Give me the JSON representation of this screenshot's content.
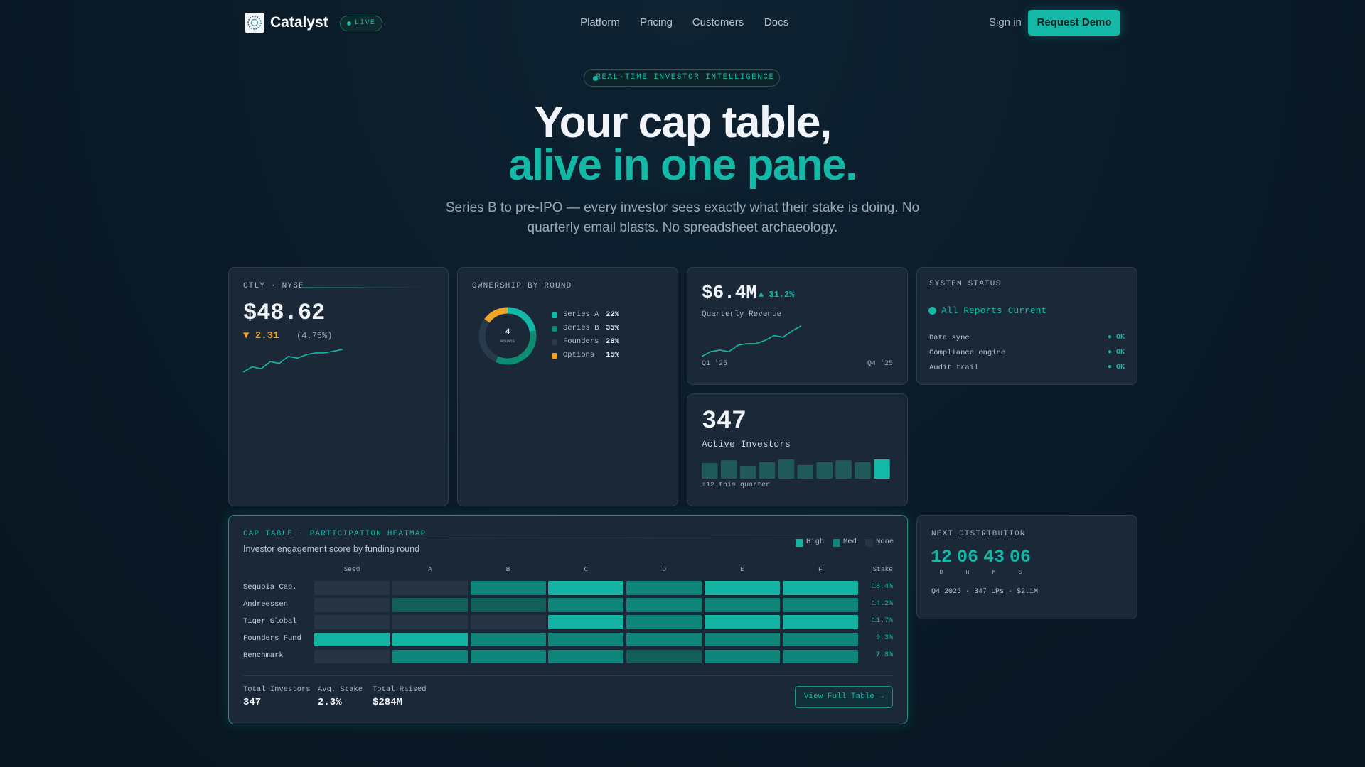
{
  "nav": {
    "brand": "Catalyst",
    "status": "LIVE",
    "links": [
      "Platform",
      "Pricing",
      "Customers",
      "Docs"
    ],
    "sign_in": "Sign in",
    "cta": "Request Demo"
  },
  "hero": {
    "badge": "REAL-TIME INVESTOR INTELLIGENCE",
    "title_line1": "Your cap table,",
    "title_line2": "alive in one pane.",
    "subtitle_line1": "Series B to pre-IPO — every investor sees exactly what their stake is doing. No",
    "subtitle_line2": "quarterly email blasts. No spreadsheet archaeology."
  },
  "stock": {
    "ticker": "CTLY · NYSE",
    "price": "$48.62",
    "change": "▼ 2.31",
    "change_pct": "(4.75%)",
    "sparkline": [
      10,
      13,
      12,
      16,
      15,
      19,
      18,
      20,
      21,
      21,
      22,
      23
    ]
  },
  "ownership": {
    "title": "OWNERSHIP BY ROUND",
    "center_value": "4",
    "center_label": "ROUNDS",
    "segments": [
      {
        "name": "Series A",
        "value": 22,
        "value_label": "22%",
        "color": "#14b8a6"
      },
      {
        "name": "Series B",
        "value": 35,
        "value_label": "35%",
        "color": "#0e8c72"
      },
      {
        "name": "Founders",
        "value": 28,
        "value_label": "28%",
        "color": "#2a3a4d"
      },
      {
        "name": "Options",
        "value": 15,
        "value_label": "15%",
        "color": "#f2a32a"
      }
    ]
  },
  "revenue": {
    "value": "$6.4M",
    "change": "▲ 31.2%",
    "label": "Quarterly Revenue",
    "sparkline": [
      2,
      5,
      6,
      5,
      9,
      10,
      10,
      12,
      15,
      14,
      18,
      21
    ],
    "start_label": "Q1 '25",
    "end_label": "Q4 '25"
  },
  "active": {
    "value": "347",
    "label": "Active Investors",
    "bars": [
      17,
      20,
      14,
      18,
      21,
      15,
      18,
      20,
      18,
      21
    ],
    "note": "+12 this quarter"
  },
  "status": {
    "title": "SYSTEM STATUS",
    "headline": "All Reports Current",
    "items": [
      {
        "name": "Data sync",
        "state": "● OK"
      },
      {
        "name": "Compliance engine",
        "state": "● OK"
      },
      {
        "name": "Audit trail",
        "state": "● OK"
      }
    ]
  },
  "heatmap": {
    "title": "CAP TABLE · PARTICIPATION HEATMAP",
    "subtitle": "Investor engagement score by funding round",
    "legend": [
      {
        "label": "High",
        "level": 3
      },
      {
        "label": "Med",
        "level": 2
      },
      {
        "label": "None",
        "level": 0
      }
    ],
    "columns": [
      "Seed",
      "A",
      "B",
      "C",
      "D",
      "E",
      "F"
    ],
    "stake_header": "Stake",
    "rows": [
      {
        "name": "Sequoia Cap.",
        "scores": [
          0,
          0,
          2,
          3,
          2,
          3,
          3
        ],
        "stake": "18.4%"
      },
      {
        "name": "Andreessen",
        "scores": [
          0,
          1,
          1,
          2,
          2,
          2,
          2
        ],
        "stake": "14.2%"
      },
      {
        "name": "Tiger Global",
        "scores": [
          0,
          0,
          0,
          3,
          2,
          3,
          3
        ],
        "stake": "11.7%"
      },
      {
        "name": "Founders Fund",
        "scores": [
          3,
          3,
          2,
          2,
          2,
          2,
          2
        ],
        "stake": "9.3%"
      },
      {
        "name": "Benchmark",
        "scores": [
          0,
          2,
          2,
          2,
          1,
          2,
          2
        ],
        "stake": "7.8%"
      }
    ],
    "stats": [
      {
        "label": "Total Investors",
        "value": "347"
      },
      {
        "label": "Avg. Stake",
        "value": "2.3%"
      },
      {
        "label": "Total Raised",
        "value": "$284M"
      }
    ],
    "button": "View Full Table →"
  },
  "distribution": {
    "title": "NEXT DISTRIBUTION",
    "countdown": [
      {
        "value": "12",
        "unit": "D"
      },
      {
        "value": "06",
        "unit": "H"
      },
      {
        "value": "43",
        "unit": "M"
      },
      {
        "value": "06",
        "unit": "S"
      }
    ],
    "note": "Q4 2025 · 347 LPs · $2.1M"
  }
}
